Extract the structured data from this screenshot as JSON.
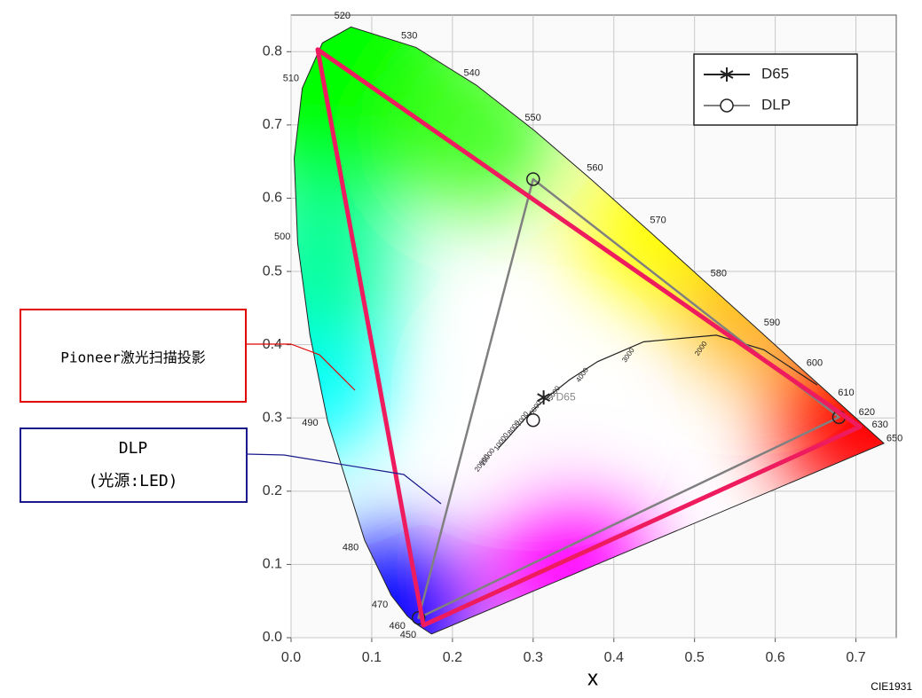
{
  "chart_data": {
    "type": "chromaticity",
    "xlabel": "x",
    "note": "CIE1931",
    "xlim": [
      0,
      0.75
    ],
    "ylim": [
      0,
      0.85
    ],
    "xticks": [
      {
        "value": 0,
        "label": "0.0"
      },
      0.1,
      0.2,
      0.3,
      0.4,
      0.5,
      0.6,
      0.7
    ],
    "yticks": [
      {
        "value": 0,
        "label": "0.0"
      },
      0.1,
      0.2,
      0.3,
      0.4,
      0.5,
      0.6,
      0.7,
      0.8
    ],
    "grid": true,
    "legend": "upper right",
    "spectral_locus": {
      "x": [
        0.1741,
        0.1566,
        0.144,
        0.1241,
        0.0913,
        0.0454,
        0.0235,
        0.0082,
        0.0039,
        0.0139,
        0.0389,
        0.0743,
        0.1547,
        0.2296,
        0.3016,
        0.3731,
        0.4441,
        0.5125,
        0.5752,
        0.627,
        0.6658,
        0.6915,
        0.7079,
        0.726,
        0.7347
      ],
      "y": [
        0.005,
        0.0177,
        0.0297,
        0.0578,
        0.1327,
        0.295,
        0.4127,
        0.5384,
        0.6548,
        0.7502,
        0.812,
        0.8338,
        0.8059,
        0.7543,
        0.6923,
        0.6245,
        0.5547,
        0.4866,
        0.4242,
        0.3725,
        0.334,
        0.3083,
        0.292,
        0.274,
        0.2653
      ],
      "labels": [
        null,
        "450",
        "460",
        "470",
        "480",
        "490",
        null,
        "500",
        null,
        "510",
        null,
        "520",
        "530",
        "540",
        "550",
        "560",
        "570",
        "580",
        "590",
        "600",
        "610",
        "620",
        "630",
        "650",
        null
      ]
    },
    "planckian_locus": {
      "x": [
        0.652,
        0.586,
        0.527,
        0.437,
        0.38,
        0.345,
        0.322,
        0.306,
        0.295,
        0.281,
        0.264,
        0.257
      ],
      "y": [
        0.345,
        0.393,
        0.413,
        0.404,
        0.377,
        0.352,
        0.332,
        0.317,
        0.305,
        0.288,
        0.267,
        0.259
      ],
      "labels": [
        null,
        null,
        "2000",
        "3000",
        "4000",
        "5000",
        "6000",
        "7000",
        "8000",
        "10000",
        "15000",
        "20000"
      ]
    },
    "series": [
      {
        "name": "D65",
        "color": "#222222",
        "marker": "star",
        "x": [
          0.313
        ],
        "y": [
          0.328
        ]
      },
      {
        "name": "DLP",
        "color": "#808080",
        "marker": "circle",
        "closed": true,
        "x": [
          0.3,
          0.679,
          0.158
        ],
        "y": [
          0.626,
          0.301,
          0.027
        ],
        "white_point": {
          "x": 0.3,
          "y": 0.297
        }
      }
    ],
    "gamuts": [
      {
        "color": "#ee1c5e",
        "x": [
          0.033,
          0.705,
          0.164
        ],
        "y": [
          0.803,
          0.288,
          0.017
        ]
      }
    ],
    "annotations": [
      {
        "lines": [
          "Pioneer激光扫描投影"
        ],
        "color": "#e00000"
      },
      {
        "lines": [
          "DLP",
          "(光源:LED)"
        ],
        "color": "#1a1a8c"
      }
    ]
  }
}
